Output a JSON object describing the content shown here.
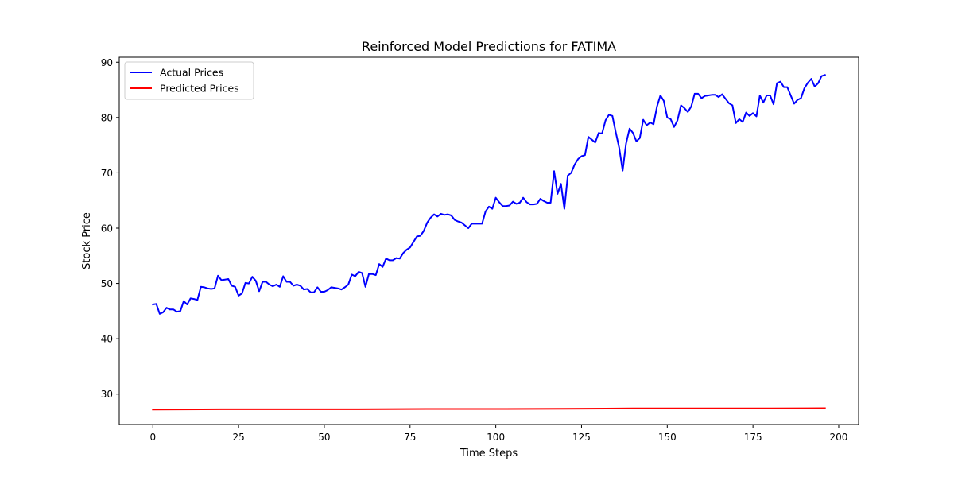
{
  "chart_data": {
    "type": "line",
    "title": "Reinforced Model Predictions for FATIMA",
    "xlabel": "Time Steps",
    "ylabel": "Stock Price",
    "xlim": [
      -9.8,
      205.8
    ],
    "ylim": [
      24.5,
      90.9
    ],
    "xticks": [
      0,
      25,
      50,
      75,
      100,
      125,
      150,
      175,
      200
    ],
    "yticks": [
      30,
      40,
      50,
      60,
      70,
      80,
      90
    ],
    "grid": false,
    "legend_position": "top-left",
    "series": [
      {
        "name": "Actual Prices",
        "color": "#0000ff",
        "x": [
          0,
          1,
          2,
          3,
          4,
          5,
          6,
          7,
          8,
          9,
          10,
          11,
          12,
          13,
          14,
          15,
          16,
          17,
          18,
          19,
          20,
          21,
          22,
          23,
          24,
          25,
          26,
          27,
          28,
          29,
          30,
          31,
          32,
          33,
          34,
          35,
          36,
          37,
          38,
          39,
          40,
          41,
          42,
          43,
          44,
          45,
          46,
          47,
          48,
          49,
          50,
          51,
          52,
          53,
          54,
          55,
          56,
          57,
          58,
          59,
          60,
          61,
          62,
          63,
          64,
          65,
          66,
          67,
          68,
          69,
          70,
          71,
          72,
          73,
          74,
          75,
          76,
          77,
          78,
          79,
          80,
          81,
          82,
          83,
          84,
          85,
          86,
          87,
          88,
          89,
          90,
          91,
          92,
          93,
          94,
          95,
          96,
          97,
          98,
          99,
          100,
          101,
          102,
          103,
          104,
          105,
          106,
          107,
          108,
          109,
          110,
          111,
          112,
          113,
          114,
          115,
          116,
          117,
          118,
          119,
          120,
          121,
          122,
          123,
          124,
          125,
          126,
          127,
          128,
          129,
          130,
          131,
          132,
          133,
          134,
          135,
          136,
          137,
          138,
          139,
          140,
          141,
          142,
          143,
          144,
          145,
          146,
          147,
          148,
          149,
          150,
          151,
          152,
          153,
          154,
          155,
          156,
          157,
          158,
          159,
          160,
          161,
          162,
          163,
          164,
          165,
          166,
          167,
          168,
          169,
          170,
          171,
          172,
          173,
          174,
          175,
          176,
          177,
          178,
          179,
          180,
          181,
          182,
          183,
          184,
          185,
          186,
          187,
          188,
          189,
          190,
          191,
          192,
          193,
          194,
          195,
          196
        ],
        "values": [
          46.2,
          46.3,
          44.5,
          44.8,
          45.6,
          45.3,
          45.3,
          44.9,
          45.0,
          46.8,
          46.2,
          47.3,
          47.2,
          47.0,
          49.4,
          49.3,
          49.1,
          49.0,
          49.1,
          51.4,
          50.6,
          50.7,
          50.8,
          49.6,
          49.4,
          47.8,
          48.2,
          50.1,
          50.0,
          51.2,
          50.5,
          48.6,
          50.3,
          50.3,
          49.8,
          49.5,
          49.8,
          49.4,
          51.3,
          50.3,
          50.3,
          49.6,
          49.8,
          49.6,
          48.9,
          49.0,
          48.4,
          48.4,
          49.3,
          48.5,
          48.5,
          48.8,
          49.3,
          49.2,
          49.1,
          48.9,
          49.3,
          49.8,
          51.6,
          51.3,
          52.1,
          51.9,
          49.4,
          51.7,
          51.7,
          51.5,
          53.5,
          53.0,
          54.5,
          54.2,
          54.2,
          54.6,
          54.5,
          55.5,
          56.1,
          56.5,
          57.5,
          58.5,
          58.6,
          59.5,
          61.0,
          61.9,
          62.5,
          62.1,
          62.6,
          62.4,
          62.5,
          62.3,
          61.5,
          61.2,
          61.0,
          60.5,
          60.0,
          60.8,
          60.8,
          60.8,
          60.8,
          63.0,
          63.9,
          63.5,
          65.5,
          64.7,
          64.0,
          64.0,
          64.1,
          64.8,
          64.4,
          64.6,
          65.5,
          64.7,
          64.3,
          64.3,
          64.4,
          65.3,
          64.9,
          64.6,
          64.6,
          70.3,
          66.2,
          68.0,
          63.5,
          69.5,
          70.0,
          71.5,
          72.5,
          73.0,
          73.2,
          76.5,
          76.0,
          75.5,
          77.2,
          77.1,
          79.5,
          80.5,
          80.3,
          77.3,
          74.5,
          70.4,
          75.3,
          78.0,
          77.2,
          75.7,
          76.3,
          79.6,
          78.6,
          79.1,
          78.8,
          82.0,
          84.0,
          83.0,
          80.0,
          79.7,
          78.3,
          79.5,
          82.2,
          81.7,
          81.0,
          82.0,
          84.3,
          84.3,
          83.5,
          83.9,
          84.0,
          84.1,
          84.1,
          83.7,
          84.2,
          83.4,
          82.6,
          82.2,
          79.0,
          79.7,
          79.2,
          80.9,
          80.3,
          80.8,
          80.2,
          84.0,
          82.7,
          84.0,
          84.0,
          82.4,
          86.2,
          86.5,
          85.5,
          85.5,
          84.0,
          82.5,
          83.2,
          83.5,
          85.3,
          86.3,
          87.0,
          85.6,
          86.2,
          87.5,
          87.7
        ]
      },
      {
        "name": "Predicted Prices",
        "color": "#ff0000",
        "x": [
          0,
          20,
          40,
          60,
          80,
          100,
          120,
          140,
          160,
          180,
          196
        ],
        "values": [
          27.2,
          27.25,
          27.25,
          27.25,
          27.3,
          27.3,
          27.35,
          27.4,
          27.4,
          27.4,
          27.45
        ]
      }
    ]
  }
}
